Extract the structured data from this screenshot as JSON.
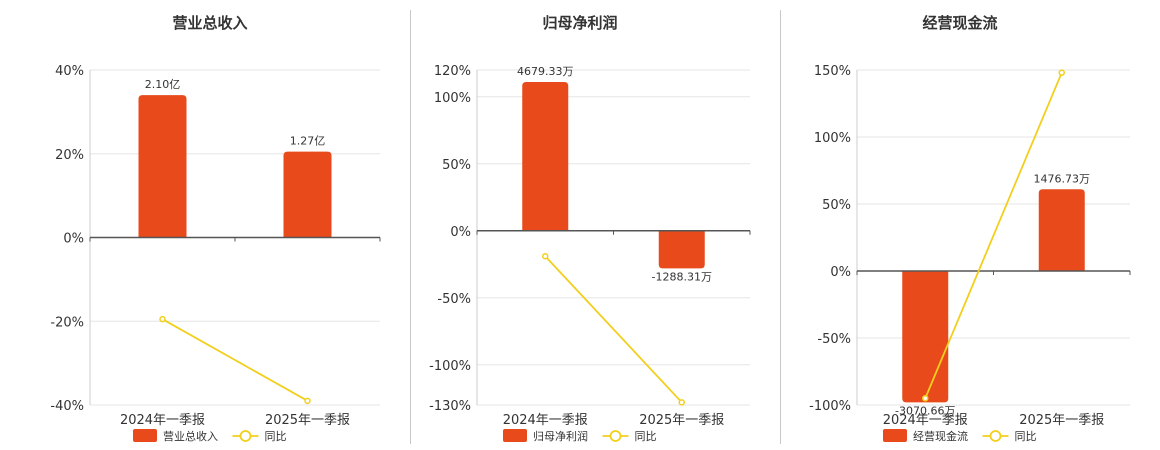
{
  "colors": {
    "bar": "#e84a1b",
    "line": "#f2cf1d",
    "grid": "#e6e6e6",
    "axis": "#555555",
    "text": "#333333"
  },
  "chart_data": [
    {
      "type": "bar",
      "title": "营业总收入",
      "categories": [
        "2024年一季报",
        "2025年一季报"
      ],
      "series": [
        {
          "name": "营业总收入",
          "type": "bar",
          "values": [
            34,
            20.5
          ],
          "labels": [
            "2.10亿",
            "1.27亿"
          ]
        },
        {
          "name": "同比",
          "type": "line",
          "values": [
            -19.5,
            -39
          ]
        }
      ],
      "yticks": [
        "40%",
        "20%",
        "0%",
        "-20%",
        "-40%"
      ],
      "ytick_values": [
        40,
        20,
        0,
        -20,
        -40
      ],
      "ylim": [
        -40,
        40
      ],
      "legend": "bottom",
      "grid": true
    },
    {
      "type": "bar",
      "title": "归母净利润",
      "categories": [
        "2024年一季报",
        "2025年一季报"
      ],
      "series": [
        {
          "name": "归母净利润",
          "type": "bar",
          "values": [
            111,
            -28
          ],
          "labels": [
            "4679.33万",
            "-1288.31万"
          ]
        },
        {
          "name": "同比",
          "type": "line",
          "values": [
            -19,
            -128
          ]
        }
      ],
      "yticks": [
        "120%",
        "100%",
        "50%",
        "0%",
        "-50%",
        "-100%",
        "-130%"
      ],
      "ytick_values": [
        120,
        100,
        50,
        0,
        -50,
        -100,
        -130
      ],
      "ylim": [
        -130,
        120
      ],
      "legend": "bottom",
      "grid": true
    },
    {
      "type": "bar",
      "title": "经营现金流",
      "categories": [
        "2024年一季报",
        "2025年一季报"
      ],
      "series": [
        {
          "name": "经营现金流",
          "type": "bar",
          "values": [
            -98,
            61
          ],
          "labels": [
            "-3070.66万",
            "1476.73万"
          ]
        },
        {
          "name": "同比",
          "type": "line",
          "values": [
            -95,
            148
          ]
        }
      ],
      "yticks": [
        "150%",
        "100%",
        "50%",
        "0%",
        "-50%",
        "-100%"
      ],
      "ytick_values": [
        150,
        100,
        50,
        0,
        -50,
        -100
      ],
      "ylim": [
        -100,
        150
      ],
      "legend": "bottom",
      "grid": true
    }
  ]
}
